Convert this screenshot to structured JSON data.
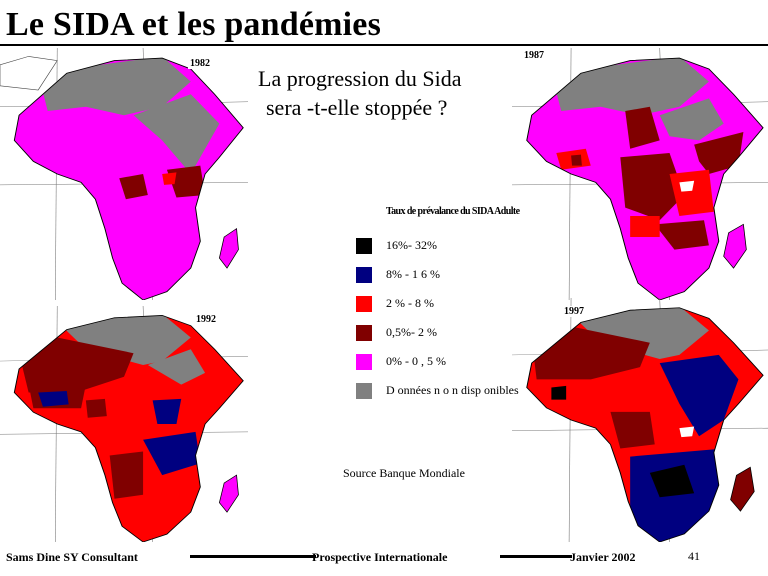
{
  "title": "Le SIDA  et les pandémies",
  "question": {
    "line1": "La progression du Sida",
    "line2": "sera -t-elle stoppée ?"
  },
  "maps": [
    {
      "year": "1982"
    },
    {
      "year": "1987"
    },
    {
      "year": "1992"
    },
    {
      "year": "1997"
    }
  ],
  "legend": {
    "title": "Taux de prévalance du SIDA Adulte",
    "items": [
      {
        "label": "16%- 32%",
        "color": "#000000"
      },
      {
        "label": "8% -  1 6 %",
        "color": "#000080"
      },
      {
        "label": "2 % -  8 %",
        "color": "#ff0000"
      },
      {
        "label": "0,5%-  2 %",
        "color": "#800000"
      },
      {
        "label": "0% -  0 , 5 %",
        "color": "#ff00ff"
      },
      {
        "label": "D onnées n o n disp onibles",
        "color": "#808080"
      }
    ]
  },
  "source": "Source Banque Mondiale",
  "footer": {
    "author": "Sams Dine SY Consultant",
    "center": "Prospective Internationale",
    "date": "Janvier 2002",
    "page": "41"
  }
}
